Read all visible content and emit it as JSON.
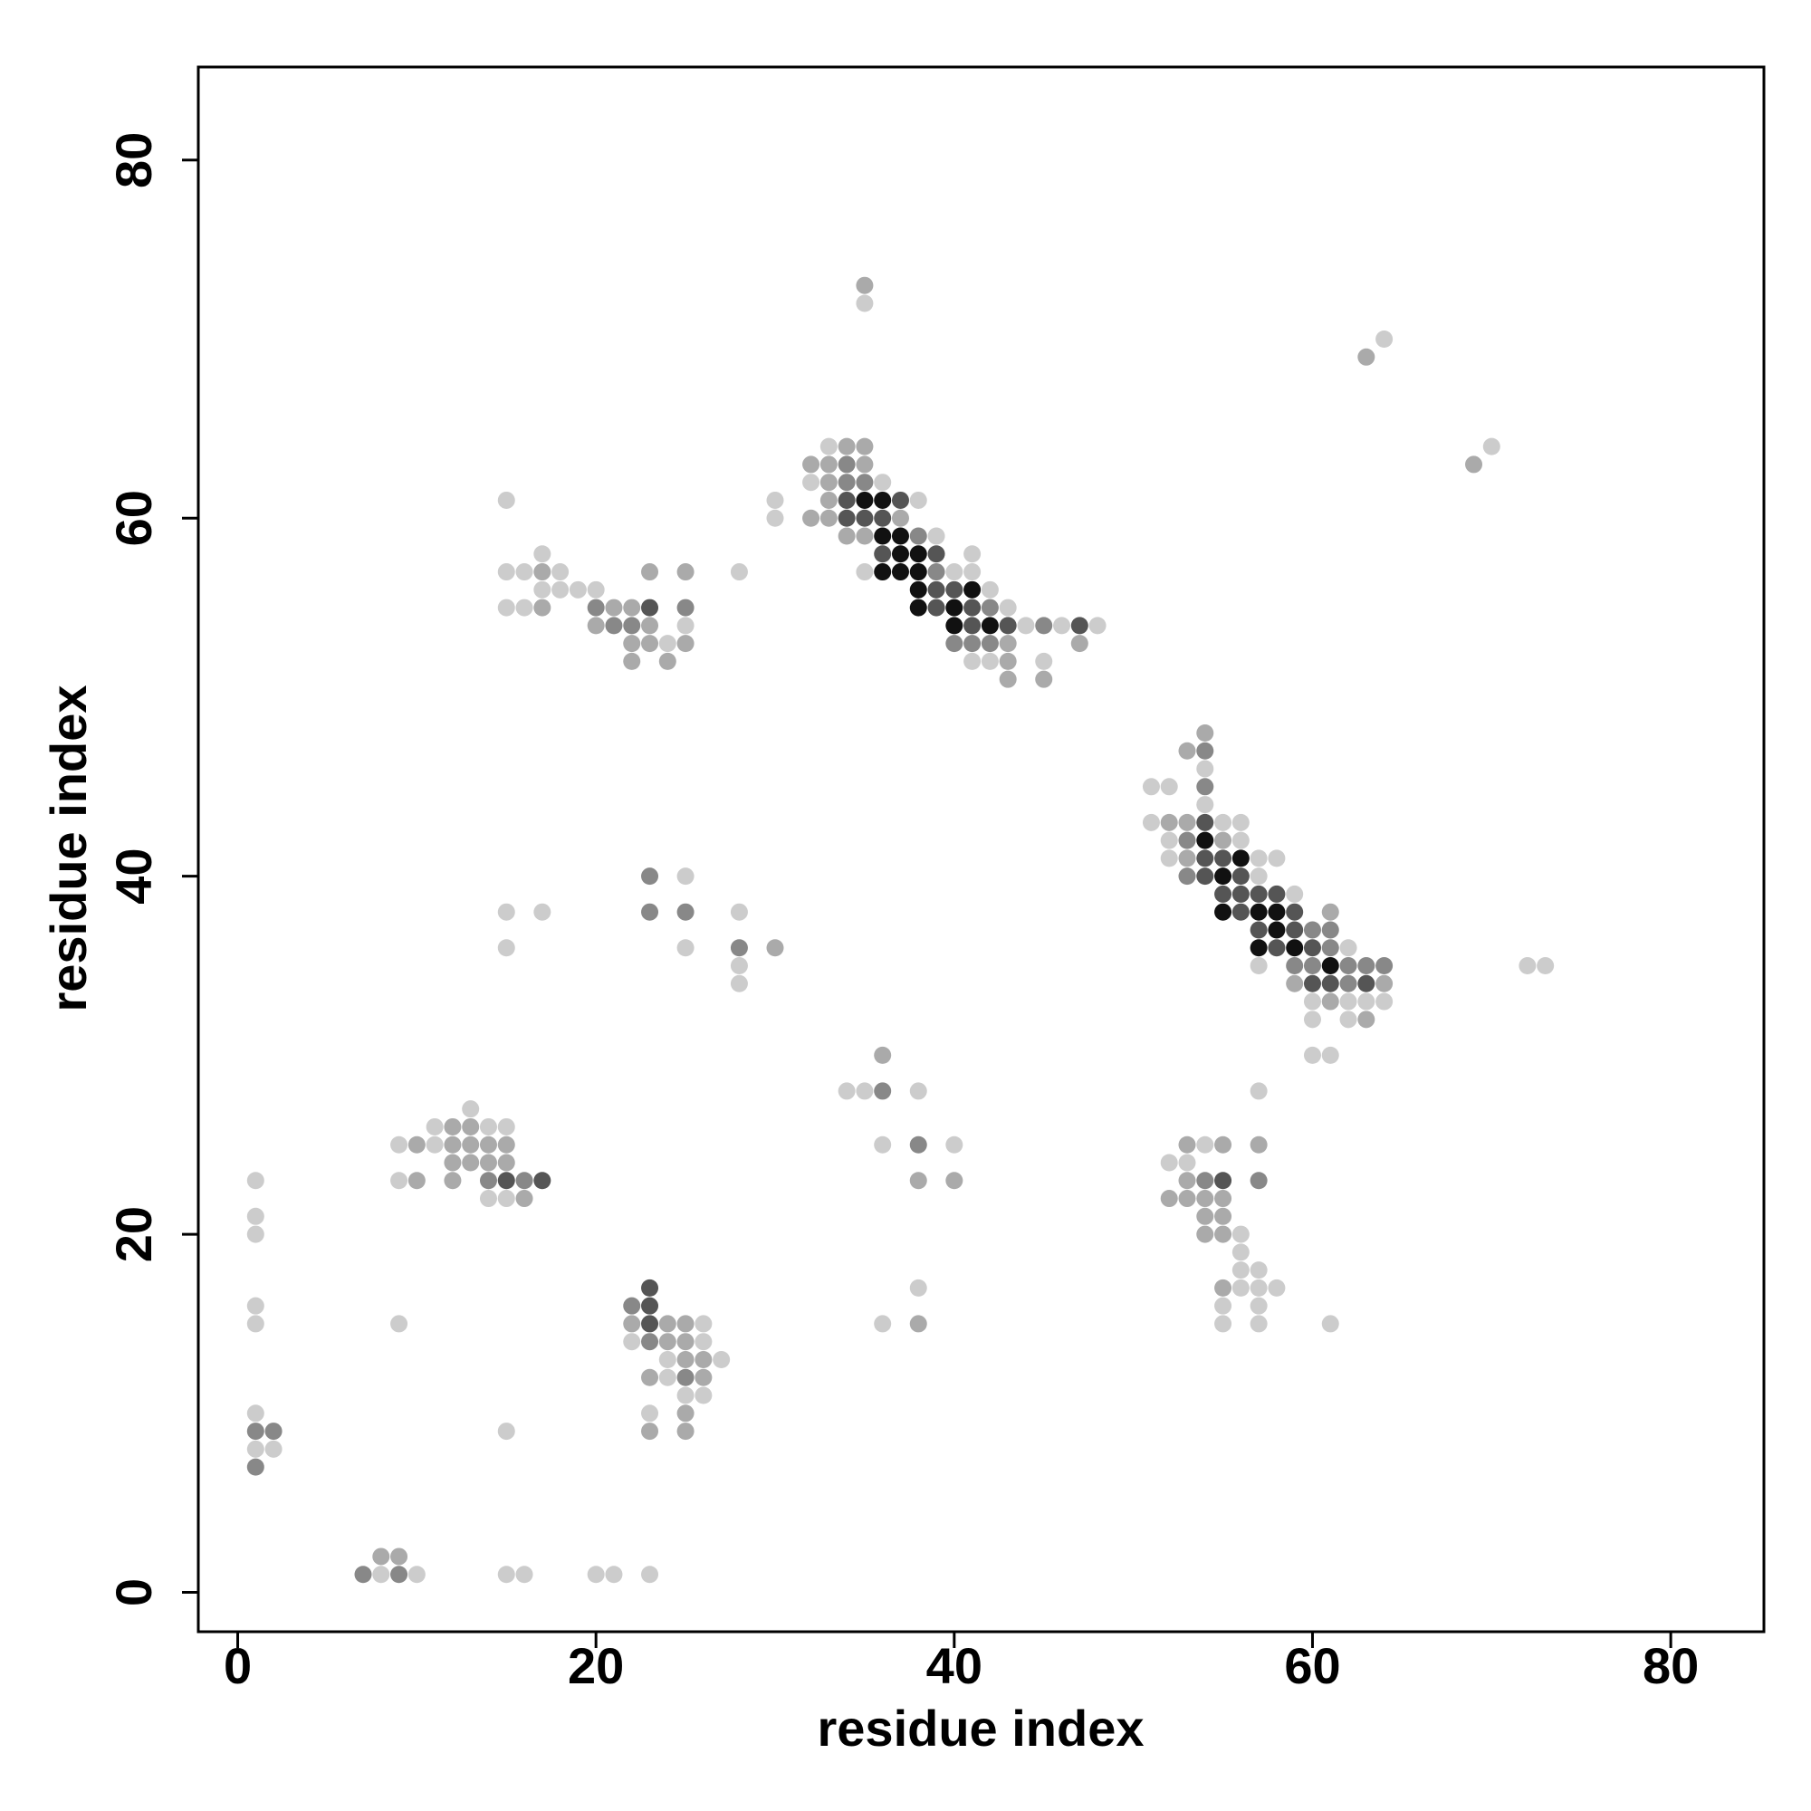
{
  "chart_data": {
    "type": "scatter",
    "xlabel": "residue index",
    "ylabel": "residue index",
    "xlim": [
      -2.2,
      85.2
    ],
    "ylim": [
      -2.2,
      85.2
    ],
    "xticks": [
      0,
      20,
      40,
      60,
      80
    ],
    "yticks": [
      0,
      20,
      40,
      60,
      80
    ],
    "x": [
      7,
      8,
      9,
      10,
      15,
      16,
      20,
      21,
      23,
      8,
      9,
      1,
      1,
      1,
      1,
      2,
      2,
      1,
      1,
      1,
      1,
      1,
      9,
      15,
      13,
      11,
      12,
      13,
      14,
      15,
      9,
      10,
      11,
      12,
      13,
      14,
      15,
      12,
      13,
      14,
      15,
      9,
      10,
      12,
      14,
      15,
      16,
      17,
      14,
      15,
      16,
      23,
      22,
      23,
      22,
      23,
      24,
      25,
      26,
      22,
      23,
      24,
      25,
      26,
      24,
      25,
      26,
      27,
      23,
      24,
      25,
      26,
      25,
      26,
      23,
      25,
      23,
      25,
      23,
      23,
      25,
      25,
      25,
      15,
      15,
      17,
      28,
      28,
      28,
      28,
      30,
      34,
      35,
      36,
      36,
      36,
      38,
      38,
      38,
      40,
      40,
      36,
      38,
      38,
      53,
      54,
      55,
      57,
      52,
      53,
      53,
      54,
      55,
      57,
      52,
      53,
      54,
      55,
      54,
      55,
      54,
      55,
      56,
      56,
      56,
      57,
      55,
      56,
      57,
      58,
      55,
      57,
      55,
      57,
      61,
      57,
      15,
      17,
      15,
      16,
      17,
      18,
      23,
      25,
      28,
      17,
      18,
      19,
      20,
      15,
      16,
      17,
      20,
      21,
      22,
      23,
      25,
      20,
      21,
      22,
      23,
      25,
      22,
      23,
      24,
      25,
      22,
      24,
      35,
      35,
      33,
      34,
      35,
      32,
      33,
      34,
      35,
      32,
      33,
      34,
      35,
      36,
      30,
      33,
      34,
      35,
      36,
      37,
      38,
      30,
      32,
      33,
      34,
      35,
      36,
      37,
      34,
      35,
      36,
      37,
      38,
      39,
      36,
      37,
      38,
      39,
      41,
      35,
      36,
      37,
      38,
      39,
      40,
      41,
      38,
      39,
      40,
      41,
      42,
      38,
      39,
      40,
      41,
      42,
      43,
      40,
      41,
      42,
      43,
      44,
      45,
      46,
      47,
      48,
      40,
      41,
      42,
      43,
      47,
      41,
      42,
      43,
      45,
      43,
      45,
      54,
      53,
      54,
      54,
      51,
      52,
      54,
      54,
      51,
      52,
      53,
      54,
      55,
      56,
      52,
      53,
      54,
      55,
      56,
      52,
      53,
      54,
      55,
      56,
      57,
      58,
      53,
      54,
      55,
      56,
      57,
      55,
      56,
      57,
      58,
      59,
      55,
      56,
      57,
      58,
      59,
      61,
      57,
      58,
      59,
      60,
      61,
      57,
      58,
      59,
      60,
      61,
      62,
      57,
      59,
      60,
      61,
      62,
      63,
      64,
      72,
      73,
      59,
      60,
      61,
      62,
      63,
      64,
      60,
      61,
      62,
      63,
      64,
      60,
      62,
      63,
      60,
      61,
      63,
      64,
      69,
      70
    ],
    "values": [
      1,
      1,
      1,
      1,
      1,
      1,
      1,
      1,
      1,
      2,
      2,
      7,
      8,
      9,
      10,
      8,
      9,
      15,
      16,
      20,
      21,
      23,
      15,
      9,
      27,
      26,
      26,
      26,
      26,
      26,
      25,
      25,
      25,
      25,
      25,
      25,
      25,
      24,
      24,
      24,
      24,
      23,
      23,
      23,
      23,
      23,
      23,
      23,
      22,
      22,
      22,
      17,
      16,
      16,
      15,
      15,
      15,
      15,
      15,
      14,
      14,
      14,
      14,
      14,
      13,
      13,
      13,
      13,
      12,
      12,
      12,
      12,
      11,
      11,
      10,
      10,
      9,
      9,
      40,
      38,
      40,
      38,
      36,
      38,
      36,
      38,
      38,
      36,
      35,
      34,
      36,
      28,
      28,
      28,
      30,
      25,
      28,
      25,
      23,
      25,
      23,
      15,
      17,
      15,
      25,
      25,
      25,
      25,
      24,
      24,
      23,
      23,
      23,
      23,
      22,
      22,
      22,
      22,
      21,
      21,
      20,
      20,
      20,
      19,
      18,
      18,
      17,
      17,
      17,
      17,
      16,
      16,
      15,
      15,
      15,
      28,
      61,
      58,
      57,
      57,
      57,
      57,
      57,
      57,
      57,
      56,
      56,
      56,
      56,
      55,
      55,
      55,
      55,
      55,
      55,
      55,
      55,
      54,
      54,
      54,
      54,
      54,
      53,
      53,
      53,
      53,
      52,
      52,
      73,
      72,
      64,
      64,
      64,
      63,
      63,
      63,
      63,
      62,
      62,
      62,
      62,
      62,
      61,
      61,
      61,
      61,
      61,
      61,
      61,
      60,
      60,
      60,
      60,
      60,
      60,
      60,
      59,
      59,
      59,
      59,
      59,
      59,
      58,
      58,
      58,
      58,
      58,
      57,
      57,
      57,
      57,
      57,
      57,
      57,
      56,
      56,
      56,
      56,
      56,
      55,
      55,
      55,
      55,
      55,
      55,
      54,
      54,
      54,
      54,
      54,
      54,
      54,
      54,
      54,
      53,
      53,
      53,
      53,
      53,
      52,
      52,
      52,
      52,
      51,
      51,
      48,
      47,
      47,
      46,
      45,
      45,
      45,
      44,
      43,
      43,
      43,
      43,
      43,
      43,
      42,
      42,
      42,
      42,
      42,
      41,
      41,
      41,
      41,
      41,
      41,
      41,
      40,
      40,
      40,
      40,
      40,
      39,
      39,
      39,
      39,
      39,
      38,
      38,
      38,
      38,
      38,
      38,
      37,
      37,
      37,
      37,
      37,
      36,
      36,
      36,
      36,
      36,
      36,
      35,
      35,
      35,
      35,
      35,
      35,
      35,
      35,
      35,
      34,
      34,
      34,
      34,
      34,
      34,
      33,
      33,
      33,
      33,
      33,
      32,
      32,
      32,
      30,
      30,
      69,
      70,
      63,
      64
    ],
    "colors": [
      "#888",
      "#ccc",
      "#888",
      "#ccc",
      "#ccc",
      "#ccc",
      "#ccc",
      "#ccc",
      "#ccc",
      "#aaa",
      "#aaa",
      "#888",
      "#ccc",
      "#888",
      "#ccc",
      "#ccc",
      "#888",
      "#ccc",
      "#ccc",
      "#ccc",
      "#ccc",
      "#ccc",
      "#ccc",
      "#ccc",
      "#ccc",
      "#ccc",
      "#aaa",
      "#aaa",
      "#ccc",
      "#ccc",
      "#ccc",
      "#aaa",
      "#ccc",
      "#aaa",
      "#aaa",
      "#aaa",
      "#aaa",
      "#aaa",
      "#aaa",
      "#aaa",
      "#aaa",
      "#ccc",
      "#aaa",
      "#aaa",
      "#888",
      "#555",
      "#888",
      "#555",
      "#ccc",
      "#ccc",
      "#aaa",
      "#555",
      "#888",
      "#555",
      "#aaa",
      "#555",
      "#aaa",
      "#aaa",
      "#ccc",
      "#ccc",
      "#888",
      "#aaa",
      "#aaa",
      "#ccc",
      "#ccc",
      "#aaa",
      "#aaa",
      "#ccc",
      "#aaa",
      "#ccc",
      "#888",
      "#aaa",
      "#ccc",
      "#ccc",
      "#ccc",
      "#aaa",
      "#aaa",
      "#aaa",
      "#888",
      "#888",
      "#ccc",
      "#888",
      "#ccc",
      "#ccc",
      "#ccc",
      "#ccc",
      "#ccc",
      "#888",
      "#ccc",
      "#ccc",
      "#aaa",
      "#ccc",
      "#ccc",
      "#888",
      "#aaa",
      "#ccc",
      "#ccc",
      "#888",
      "#aaa",
      "#ccc",
      "#aaa",
      "#ccc",
      "#ccc",
      "#aaa",
      "#aaa",
      "#ccc",
      "#aaa",
      "#aaa",
      "#ccc",
      "#ccc",
      "#aaa",
      "#888",
      "#555",
      "#888",
      "#aaa",
      "#aaa",
      "#aaa",
      "#aaa",
      "#aaa",
      "#aaa",
      "#aaa",
      "#aaa",
      "#ccc",
      "#ccc",
      "#ccc",
      "#ccc",
      "#aaa",
      "#ccc",
      "#ccc",
      "#ccc",
      "#ccc",
      "#ccc",
      "#ccc",
      "#ccc",
      "#ccc",
      "#ccc",
      "#ccc",
      "#ccc",
      "#ccc",
      "#ccc",
      "#aaa",
      "#ccc",
      "#aaa",
      "#aaa",
      "#ccc",
      "#ccc",
      "#ccc",
      "#ccc",
      "#ccc",
      "#ccc",
      "#ccc",
      "#aaa",
      "#888",
      "#aaa",
      "#aaa",
      "#555",
      "#888",
      "#aaa",
      "#888",
      "#888",
      "#aaa",
      "#ccc",
      "#aaa",
      "#aaa",
      "#ccc",
      "#aaa",
      "#aaa",
      "#aaa",
      "#aaa",
      "#ccc",
      "#ccc",
      "#aaa",
      "#aaa",
      "#aaa",
      "#aaa",
      "#888",
      "#aaa",
      "#ccc",
      "#aaa",
      "#888",
      "#888",
      "#ccc",
      "#ccc",
      "#aaa",
      "#555",
      "#111",
      "#111",
      "#555",
      "#ccc",
      "#ccc",
      "#aaa",
      "#aaa",
      "#555",
      "#555",
      "#555",
      "#aaa",
      "#aaa",
      "#aaa",
      "#111",
      "#111",
      "#888",
      "#ccc",
      "#555",
      "#111",
      "#111",
      "#555",
      "#ccc",
      "#ccc",
      "#111",
      "#111",
      "#111",
      "#888",
      "#ccc",
      "#ccc",
      "#111",
      "#555",
      "#555",
      "#111",
      "#ccc",
      "#111",
      "#555",
      "#111",
      "#555",
      "#888",
      "#ccc",
      "#111",
      "#555",
      "#111",
      "#555",
      "#ccc",
      "#888",
      "#ccc",
      "#555",
      "#ccc",
      "#888",
      "#888",
      "#888",
      "#aaa",
      "#aaa",
      "#ccc",
      "#ccc",
      "#aaa",
      "#ccc",
      "#aaa",
      "#aaa",
      "#aaa",
      "#aaa",
      "#888",
      "#ccc",
      "#ccc",
      "#ccc",
      "#888",
      "#ccc",
      "#ccc",
      "#aaa",
      "#aaa",
      "#555",
      "#ccc",
      "#ccc",
      "#ccc",
      "#888",
      "#111",
      "#aaa",
      "#ccc",
      "#ccc",
      "#aaa",
      "#555",
      "#555",
      "#111",
      "#ccc",
      "#ccc",
      "#888",
      "#555",
      "#111",
      "#555",
      "#ccc",
      "#555",
      "#555",
      "#555",
      "#555",
      "#ccc",
      "#111",
      "#555",
      "#111",
      "#111",
      "#555",
      "#aaa",
      "#555",
      "#111",
      "#555",
      "#888",
      "#888",
      "#111",
      "#555",
      "#111",
      "#555",
      "#888",
      "#ccc",
      "#ccc",
      "#888",
      "#888",
      "#111",
      "#888",
      "#888",
      "#888",
      "#ccc",
      "#ccc",
      "#aaa",
      "#555",
      "#555",
      "#888",
      "#555",
      "#aaa",
      "#ccc",
      "#aaa",
      "#ccc",
      "#ccc",
      "#ccc",
      "#ccc",
      "#ccc",
      "#aaa",
      "#ccc",
      "#ccc",
      "#aaa",
      "#ccc",
      "#aaa",
      "#ccc"
    ]
  }
}
